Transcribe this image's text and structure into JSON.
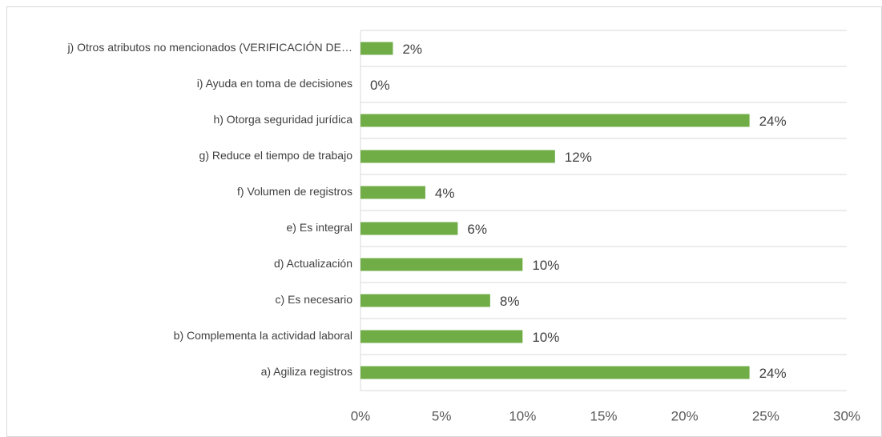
{
  "chart_data": {
    "type": "bar",
    "orientation": "horizontal",
    "categories": [
      "a) Agiliza registros",
      "b) Complementa la actividad laboral",
      "c) Es necesario",
      "d) Actualización",
      "e) Es integral",
      "f) Volumen de registros",
      "g) Reduce el tiempo de trabajo",
      "h) Otorga seguridad jurídica",
      "i) Ayuda en toma de decisiones",
      "j) Otros atributos no mencionados (VERIFICACIÓN  DE…"
    ],
    "values": [
      24,
      10,
      8,
      10,
      6,
      4,
      12,
      24,
      0,
      2
    ],
    "value_labels": [
      "24%",
      "10%",
      "8%",
      "10%",
      "6%",
      "4%",
      "12%",
      "24%",
      "0%",
      "2%"
    ],
    "color": "#70ad47",
    "xlim": [
      0,
      30
    ],
    "xticks": [
      {
        "value": 0,
        "label": "0%"
      },
      {
        "value": 5,
        "label": "5%"
      },
      {
        "value": 10,
        "label": "10%"
      },
      {
        "value": 15,
        "label": "15%"
      },
      {
        "value": 20,
        "label": "20%"
      },
      {
        "value": 25,
        "label": "25%"
      },
      {
        "value": 30,
        "label": "30%"
      }
    ],
    "grid": true
  }
}
